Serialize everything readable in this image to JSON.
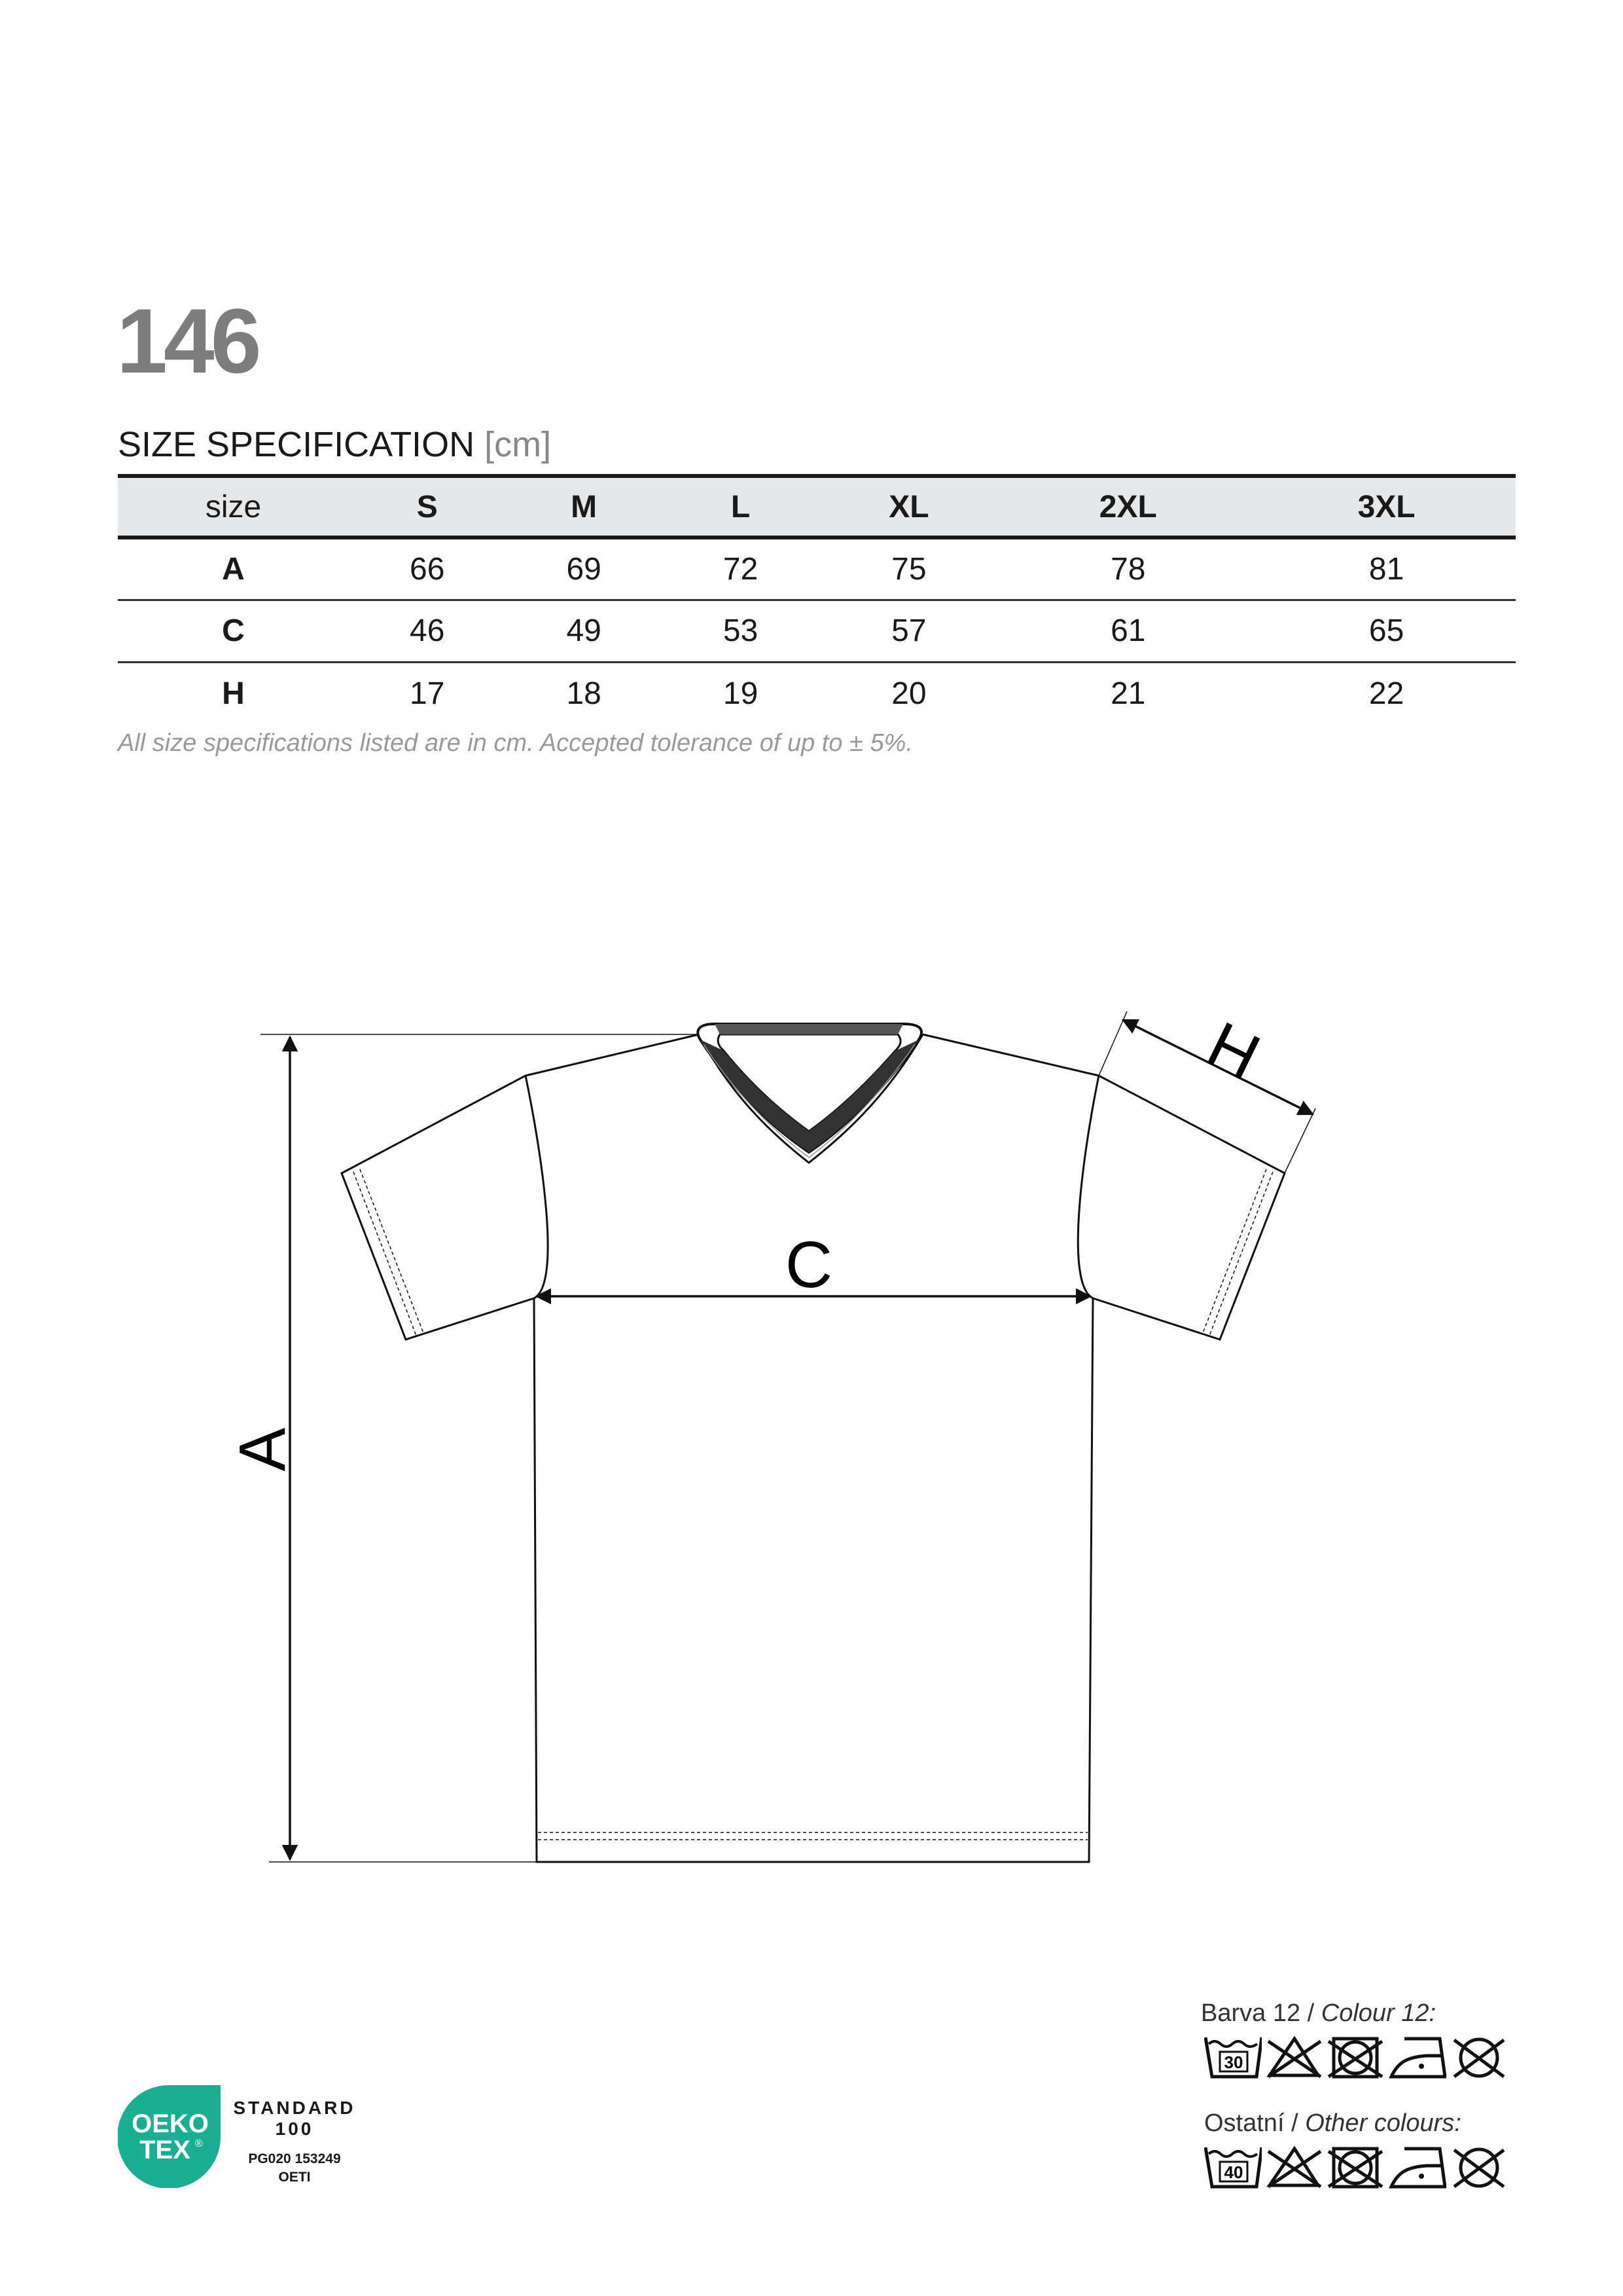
{
  "model_number": "146",
  "spec": {
    "title": "SIZE SPECIFICATION",
    "unit": "[cm]",
    "header": [
      "size",
      "S",
      "M",
      "L",
      "XL",
      "2XL",
      "3XL"
    ],
    "rows": [
      [
        "A",
        "66",
        "69",
        "72",
        "75",
        "78",
        "81"
      ],
      [
        "C",
        "46",
        "49",
        "53",
        "57",
        "61",
        "65"
      ],
      [
        "H",
        "17",
        "18",
        "19",
        "20",
        "21",
        "22"
      ]
    ],
    "note": "All size specifications listed are in cm. Accepted tolerance of up to ± 5%."
  },
  "diagram": {
    "label_a": "A",
    "label_c": "C",
    "label_h": "H"
  },
  "care": {
    "group1": {
      "label": "Barva 12",
      "label_en": "Colour 12:",
      "wash_temp": "30",
      "icons": [
        "wash-30-icon",
        "no-bleach-icon",
        "no-tumble-dry-icon",
        "iron-low-icon",
        "no-dry-clean-icon"
      ]
    },
    "group2": {
      "label": "Ostatní",
      "label_en": "Other colours:",
      "wash_temp": "40",
      "icons": [
        "wash-40-icon",
        "no-bleach-icon",
        "no-tumble-dry-icon",
        "iron-low-icon",
        "no-dry-clean-icon"
      ]
    },
    "separator": "/"
  },
  "certification": {
    "logo_line1": "OEKO",
    "logo_line2": "TEX",
    "logo_mark": "®",
    "standard": "STANDARD",
    "standard_number": "100",
    "code": "PG020 153249",
    "institute": "OETI",
    "color": "#1aae94"
  }
}
